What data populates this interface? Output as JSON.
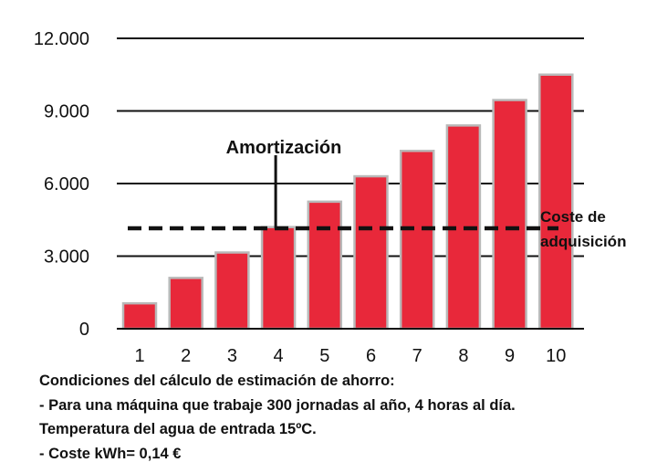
{
  "chart_data": {
    "type": "bar",
    "categories": [
      "1",
      "2",
      "3",
      "4",
      "5",
      "6",
      "7",
      "8",
      "9",
      "10"
    ],
    "values": [
      1050,
      2100,
      3150,
      4200,
      5250,
      6300,
      7350,
      8400,
      9450,
      10500
    ],
    "y_ticks": [
      "0",
      "3.000",
      "6.000",
      "9.000",
      "12.000"
    ],
    "y_tick_values": [
      0,
      3000,
      6000,
      9000,
      12000
    ],
    "ylim": [
      0,
      12000
    ],
    "grid": "horizontal",
    "bar_color": "#e8283a",
    "annotations": {
      "amortization_label": "Amortización",
      "amortization_category": "4",
      "acquisition_cost_value": 4150,
      "acquisition_label_line1": "Coste de",
      "acquisition_label_line2": "adquisición"
    }
  },
  "conditions": {
    "heading": "Condiciones del cálculo de estimación de ahorro:",
    "line1": "- Para una máquina que trabaje 300 jornadas al año, 4 horas al día.",
    "line2": "Temperatura del agua de entrada 15ºC.",
    "line3": "- Coste kWh= 0,14 €"
  }
}
